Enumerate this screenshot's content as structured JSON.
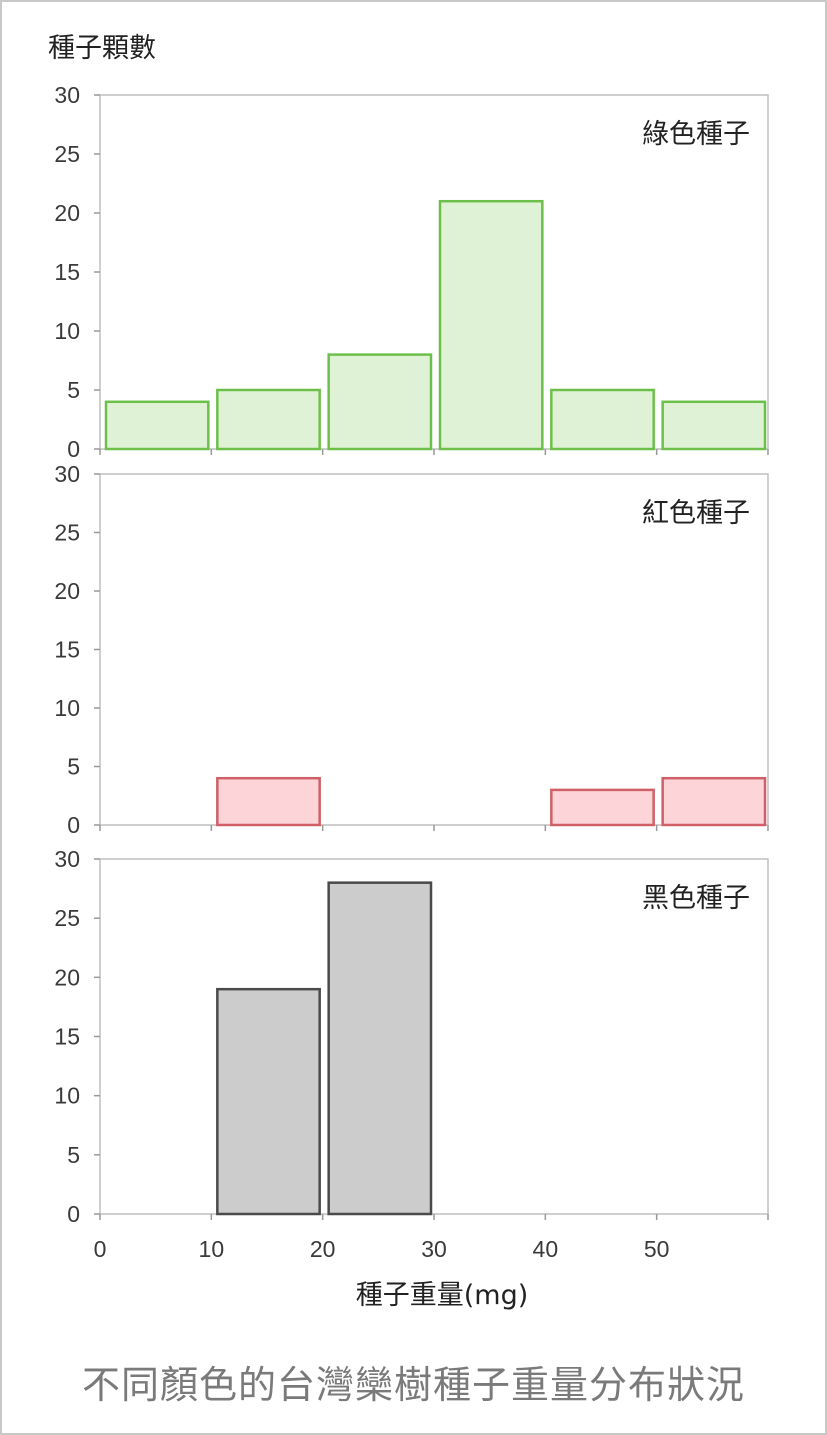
{
  "chart_data": {
    "type": "bar",
    "ylabel": "種子顆數",
    "xlabel": "種子重量(mg)",
    "x_ticks": [
      0,
      10,
      20,
      30,
      40,
      50
    ],
    "y_ticks": [
      0,
      5,
      10,
      15,
      20,
      25,
      30
    ],
    "xlim": [
      0,
      60
    ],
    "ylim": [
      0,
      30
    ],
    "panels": [
      {
        "name": "綠色種子",
        "fill": "#e0f2d6",
        "stroke": "#6cc04a",
        "bins": [
          {
            "from": 0,
            "to": 10,
            "count": 4
          },
          {
            "from": 10,
            "to": 20,
            "count": 5
          },
          {
            "from": 20,
            "to": 30,
            "count": 8
          },
          {
            "from": 30,
            "to": 40,
            "count": 21
          },
          {
            "from": 40,
            "to": 50,
            "count": 5
          },
          {
            "from": 50,
            "to": 60,
            "count": 4
          }
        ]
      },
      {
        "name": "紅色種子",
        "fill": "#fdd4d7",
        "stroke": "#d06068",
        "bins": [
          {
            "from": 10,
            "to": 20,
            "count": 4
          },
          {
            "from": 40,
            "to": 50,
            "count": 3
          },
          {
            "from": 50,
            "to": 60,
            "count": 4
          }
        ]
      },
      {
        "name": "黑色種子",
        "fill": "#cccccc",
        "stroke": "#4a4a4a",
        "bins": [
          {
            "from": 10,
            "to": 20,
            "count": 19
          },
          {
            "from": 20,
            "to": 30,
            "count": 28
          }
        ]
      }
    ]
  },
  "caption": "不同顏色的台灣欒樹種子重量分布狀況"
}
